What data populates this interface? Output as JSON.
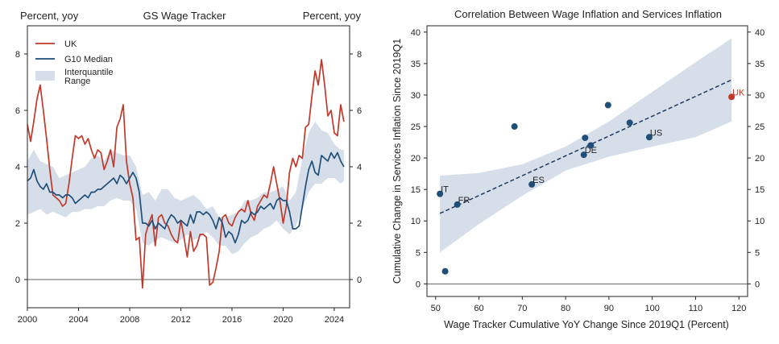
{
  "chart_data": [
    {
      "type": "line",
      "title": "GS Wage Tracker",
      "ylabel_left": "Percent, yoy",
      "ylabel_right": "Percent, yoy",
      "xlim": [
        2000,
        2025.2
      ],
      "ylim": [
        -1,
        9
      ],
      "xticks": [
        "2000",
        "2004",
        "2008",
        "2012",
        "2016",
        "2020",
        "2024"
      ],
      "yticks": [
        "0",
        "2",
        "4",
        "6",
        "8"
      ],
      "grid": false,
      "legend_position": "top-left",
      "legend": [
        "UK",
        "G10 Median",
        "Interquantile Range"
      ],
      "colors": {
        "uk": "#c0392b",
        "median": "#1f4e79",
        "band": "#d6dfe9"
      },
      "series": [
        {
          "name": "UK",
          "x": [
            2000.0,
            2000.25,
            2000.5,
            2000.75,
            2001.0,
            2001.25,
            2001.5,
            2001.75,
            2002.0,
            2002.25,
            2002.5,
            2002.75,
            2003.0,
            2003.25,
            2003.5,
            2003.75,
            2004.0,
            2004.25,
            2004.5,
            2004.75,
            2005.0,
            2005.25,
            2005.5,
            2005.75,
            2006.0,
            2006.25,
            2006.5,
            2006.75,
            2007.0,
            2007.25,
            2007.5,
            2007.75,
            2008.0,
            2008.25,
            2008.5,
            2008.75,
            2009.0,
            2009.25,
            2009.5,
            2009.75,
            2010.0,
            2010.25,
            2010.5,
            2010.75,
            2011.0,
            2011.25,
            2011.5,
            2011.75,
            2012.0,
            2012.25,
            2012.5,
            2012.75,
            2013.0,
            2013.25,
            2013.5,
            2013.75,
            2014.0,
            2014.25,
            2014.5,
            2014.75,
            2015.0,
            2015.25,
            2015.5,
            2015.75,
            2016.0,
            2016.25,
            2016.5,
            2016.75,
            2017.0,
            2017.25,
            2017.5,
            2017.75,
            2018.0,
            2018.25,
            2018.5,
            2018.75,
            2019.0,
            2019.25,
            2019.5,
            2019.75,
            2020.0,
            2020.25,
            2020.5,
            2020.75,
            2021.0,
            2021.25,
            2021.5,
            2021.75,
            2022.0,
            2022.25,
            2022.5,
            2022.75,
            2023.0,
            2023.25,
            2023.5,
            2023.75,
            2024.0,
            2024.25,
            2024.5,
            2024.75
          ],
          "values": [
            5.5,
            4.9,
            5.6,
            6.4,
            6.9,
            6.0,
            5.0,
            3.9,
            3.0,
            2.9,
            2.8,
            2.6,
            2.7,
            3.4,
            4.3,
            5.1,
            5.0,
            5.1,
            4.8,
            5.0,
            4.6,
            4.3,
            4.6,
            4.5,
            3.9,
            4.2,
            4.6,
            4.0,
            5.4,
            5.7,
            6.2,
            4.2,
            3.4,
            2.9,
            1.4,
            1.5,
            -0.3,
            1.6,
            2.0,
            2.3,
            1.2,
            2.2,
            2.3,
            2.0,
            1.9,
            1.6,
            1.4,
            1.3,
            2.1,
            1.5,
            0.8,
            1.7,
            1.0,
            1.2,
            1.6,
            1.6,
            1.5,
            -0.2,
            -0.1,
            0.4,
            1.0,
            2.2,
            2.3,
            2.0,
            1.9,
            2.2,
            2.4,
            2.5,
            2.4,
            2.8,
            2.3,
            2.1,
            2.6,
            2.8,
            3.0,
            2.9,
            3.4,
            4.0,
            3.4,
            2.8,
            2.0,
            2.6,
            3.8,
            4.3,
            4.0,
            4.4,
            4.3,
            5.4,
            5.5,
            6.5,
            7.4,
            6.9,
            7.8,
            6.9,
            5.8,
            6.0,
            5.2,
            5.1,
            6.2,
            5.6
          ]
        },
        {
          "name": "G10 Median",
          "x": [
            2000.0,
            2000.25,
            2000.5,
            2000.75,
            2001.0,
            2001.25,
            2001.5,
            2001.75,
            2002.0,
            2002.25,
            2002.5,
            2002.75,
            2003.0,
            2003.25,
            2003.5,
            2003.75,
            2004.0,
            2004.25,
            2004.5,
            2004.75,
            2005.0,
            2005.25,
            2005.5,
            2005.75,
            2006.0,
            2006.25,
            2006.5,
            2006.75,
            2007.0,
            2007.25,
            2007.5,
            2007.75,
            2008.0,
            2008.25,
            2008.5,
            2008.75,
            2009.0,
            2009.25,
            2009.5,
            2009.75,
            2010.0,
            2010.25,
            2010.5,
            2010.75,
            2011.0,
            2011.25,
            2011.5,
            2011.75,
            2012.0,
            2012.25,
            2012.5,
            2012.75,
            2013.0,
            2013.25,
            2013.5,
            2013.75,
            2014.0,
            2014.25,
            2014.5,
            2014.75,
            2015.0,
            2015.25,
            2015.5,
            2015.75,
            2016.0,
            2016.25,
            2016.5,
            2016.75,
            2017.0,
            2017.25,
            2017.5,
            2017.75,
            2018.0,
            2018.25,
            2018.5,
            2018.75,
            2019.0,
            2019.25,
            2019.5,
            2019.75,
            2020.0,
            2020.25,
            2020.5,
            2020.75,
            2021.0,
            2021.25,
            2021.5,
            2021.75,
            2022.0,
            2022.25,
            2022.5,
            2022.75,
            2023.0,
            2023.25,
            2023.5,
            2023.75,
            2024.0,
            2024.25,
            2024.5,
            2024.75
          ],
          "values": [
            3.5,
            3.6,
            3.9,
            3.5,
            3.3,
            3.2,
            3.4,
            3.1,
            3.1,
            3.0,
            3.0,
            2.9,
            3.0,
            3.0,
            2.9,
            2.7,
            2.8,
            2.9,
            3.0,
            2.9,
            3.1,
            3.1,
            3.2,
            3.2,
            3.3,
            3.4,
            3.5,
            3.6,
            3.4,
            3.7,
            3.6,
            3.4,
            3.6,
            3.8,
            3.6,
            3.1,
            2.0,
            2.0,
            1.9,
            2.1,
            1.8,
            2.0,
            1.9,
            1.8,
            2.1,
            2.3,
            2.2,
            2.0,
            2.1,
            2.0,
            1.9,
            2.3,
            2.0,
            2.4,
            2.4,
            2.3,
            2.4,
            2.3,
            2.1,
            1.8,
            2.2,
            2.0,
            1.5,
            1.7,
            1.6,
            1.3,
            1.6,
            2.1,
            2.0,
            2.1,
            2.4,
            2.3,
            2.4,
            2.6,
            2.5,
            2.6,
            2.7,
            2.5,
            2.8,
            2.9,
            2.8,
            2.8,
            2.4,
            1.8,
            1.8,
            1.9,
            2.6,
            3.3,
            3.9,
            4.2,
            3.8,
            3.7,
            4.4,
            4.3,
            4.2,
            4.5,
            4.3,
            4.5,
            4.2,
            4.0
          ]
        },
        {
          "name": "Interquantile Range",
          "x": [
            2000.0,
            2000.5,
            2001.0,
            2001.5,
            2002.0,
            2002.5,
            2003.0,
            2003.5,
            2004.0,
            2004.5,
            2005.0,
            2005.5,
            2006.0,
            2006.5,
            2007.0,
            2007.5,
            2008.0,
            2008.5,
            2009.0,
            2009.5,
            2010.0,
            2010.5,
            2011.0,
            2011.5,
            2012.0,
            2012.5,
            2013.0,
            2013.5,
            2014.0,
            2014.5,
            2015.0,
            2015.5,
            2016.0,
            2016.5,
            2017.0,
            2017.5,
            2018.0,
            2018.5,
            2019.0,
            2019.5,
            2020.0,
            2020.5,
            2021.0,
            2021.5,
            2022.0,
            2022.5,
            2023.0,
            2023.5,
            2024.0,
            2024.5,
            2024.75
          ],
          "low": [
            2.3,
            2.4,
            2.5,
            2.3,
            2.4,
            2.3,
            2.2,
            2.4,
            2.4,
            2.5,
            2.5,
            2.6,
            2.6,
            2.8,
            2.9,
            2.8,
            2.8,
            2.5,
            1.3,
            1.2,
            1.4,
            1.5,
            1.4,
            1.3,
            1.4,
            1.6,
            1.4,
            1.5,
            1.7,
            1.5,
            1.2,
            1.2,
            0.9,
            1.0,
            1.3,
            1.5,
            1.6,
            1.8,
            1.9,
            2.1,
            1.8,
            1.6,
            1.9,
            2.5,
            3.1,
            3.4,
            3.4,
            3.6,
            3.6,
            3.4,
            3.5
          ],
          "high": [
            4.2,
            4.6,
            4.2,
            4.1,
            4.0,
            3.6,
            3.7,
            3.8,
            3.9,
            4.0,
            4.3,
            4.4,
            4.2,
            4.6,
            4.5,
            4.4,
            4.4,
            4.0,
            3.0,
            3.1,
            2.8,
            3.2,
            3.2,
            2.9,
            2.8,
            2.9,
            3.0,
            2.8,
            2.5,
            2.6,
            2.2,
            2.2,
            2.3,
            2.4,
            2.8,
            2.8,
            2.9,
            3.1,
            3.1,
            3.2,
            3.3,
            2.8,
            3.1,
            4.3,
            5.2,
            5.6,
            5.3,
            5.2,
            4.8,
            4.6,
            4.6
          ]
        }
      ]
    },
    {
      "type": "scatter",
      "title": "Correlation Between Wage Inflation and Services Inflation",
      "xlabel": "Wage Tracker Cumulative YoY Change Since 2019Q1 (Percent)",
      "ylabel": "Cumulative Change in Services Inflation Since 2019Q1",
      "xlim": [
        48,
        122
      ],
      "ylim": [
        -2,
        41
      ],
      "xticks": [
        "50",
        "60",
        "70",
        "80",
        "90",
        "100",
        "110",
        "120"
      ],
      "yticks": [
        "0",
        "5",
        "10",
        "15",
        "20",
        "25",
        "30",
        "35",
        "40"
      ],
      "grid": false,
      "colors": {
        "point": "#1f4e79",
        "highlight": "#c0392b",
        "fit": "#1f3a5f",
        "band": "#d6dfe9"
      },
      "points": [
        {
          "x": 51.0,
          "y": 14.3,
          "label": "IT"
        },
        {
          "x": 52.2,
          "y": 2.0,
          "label": ""
        },
        {
          "x": 55.0,
          "y": 12.6,
          "label": "FR"
        },
        {
          "x": 68.2,
          "y": 25.0,
          "label": ""
        },
        {
          "x": 72.2,
          "y": 15.8,
          "label": "ES"
        },
        {
          "x": 84.2,
          "y": 20.5,
          "label": "DE"
        },
        {
          "x": 84.5,
          "y": 23.2,
          "label": ""
        },
        {
          "x": 85.8,
          "y": 22.0,
          "label": ""
        },
        {
          "x": 89.8,
          "y": 28.4,
          "label": ""
        },
        {
          "x": 94.8,
          "y": 25.6,
          "label": ""
        },
        {
          "x": 99.3,
          "y": 23.3,
          "label": "US"
        },
        {
          "x": 118.3,
          "y": 29.7,
          "label": "UK",
          "highlight": true
        }
      ],
      "fit": {
        "x0": 51.0,
        "y0": 11.2,
        "x1": 118.3,
        "y1": 32.4
      },
      "band": {
        "x": [
          51,
          60,
          70,
          80,
          90,
          100,
          110,
          118.3
        ],
        "low": [
          5.0,
          9.5,
          14.0,
          18.0,
          20.2,
          21.8,
          23.3,
          25.8
        ],
        "high": [
          17.2,
          17.6,
          19.0,
          21.8,
          25.8,
          30.5,
          35.2,
          39.0
        ]
      }
    }
  ]
}
